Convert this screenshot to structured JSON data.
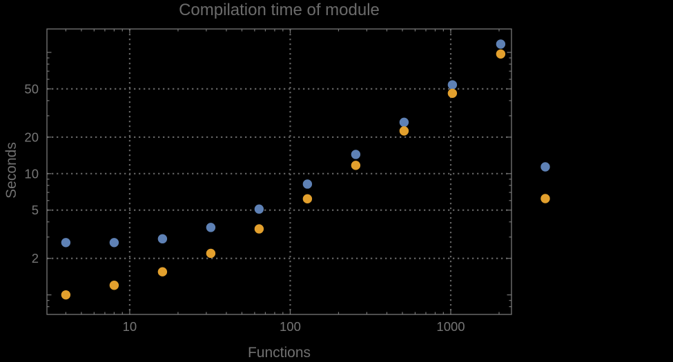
{
  "window": {
    "background": "#000000"
  },
  "colors": {
    "background": "#000000",
    "frame": "#787878",
    "grid": "#636363",
    "text": "#707070",
    "series_blue": "#5e81b5",
    "series_orange": "#e3a02d"
  },
  "chart_data": {
    "type": "scatter",
    "title": "Compilation time of module",
    "xlabel": "Functions",
    "ylabel": "Seconds",
    "x_scale": "log",
    "y_scale": "log",
    "grid": "dotted lines at labeled major ticks",
    "x": [
      4,
      8,
      16,
      32,
      64,
      128,
      256,
      512,
      1024,
      2048
    ],
    "series": [
      {
        "name": "series-1-blue",
        "marker": "disk",
        "color": "#5e81b5",
        "values": [
          2.7,
          2.7,
          2.9,
          3.6,
          5.1,
          8.2,
          14.4,
          26.5,
          54,
          117
        ]
      },
      {
        "name": "series-2-orange",
        "marker": "disk",
        "color": "#e3a02d",
        "values": [
          1.0,
          1.2,
          1.55,
          2.2,
          3.5,
          6.2,
          11.7,
          22.5,
          46,
          97
        ]
      }
    ],
    "x_axis": {
      "ticks_labeled": [
        10,
        100,
        1000
      ],
      "range": [
        3.05,
        2390
      ]
    },
    "y_axis": {
      "ticks_labeled": [
        2,
        5,
        10,
        20,
        50
      ],
      "ticks_unlabeled_major": [
        1,
        100
      ],
      "range": [
        0.69,
        156
      ]
    },
    "legend": {
      "position": "outside-right",
      "entries": [
        {
          "series": "series-1-blue",
          "color": "#5e81b5",
          "label": ""
        },
        {
          "series": "series-2-orange",
          "color": "#e3a02d",
          "label": ""
        }
      ]
    }
  }
}
